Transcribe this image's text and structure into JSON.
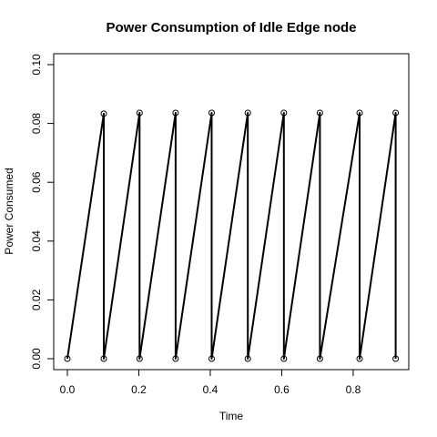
{
  "chart_data": {
    "type": "line",
    "title": "Power Consumption of Idle Edge node",
    "xlabel": "Time",
    "ylabel": "Power Consumed",
    "xlim": [
      0.0,
      0.92
    ],
    "ylim": [
      0.0,
      0.1
    ],
    "x_ticks": [
      "0.0",
      "0.2",
      "0.4",
      "0.6",
      "0.8"
    ],
    "y_ticks": [
      "0.00",
      "0.02",
      "0.04",
      "0.06",
      "0.08",
      "0.10"
    ],
    "grid": false,
    "series": [
      {
        "x": [
          0.0,
          0.102,
          0.102,
          0.202,
          0.202,
          0.303,
          0.303,
          0.404,
          0.404,
          0.505,
          0.505,
          0.606,
          0.606,
          0.707,
          0.707,
          0.818,
          0.818,
          0.919,
          0.919
        ],
        "y": [
          0.0,
          0.0833,
          0.0,
          0.0836,
          0.0,
          0.0836,
          0.0,
          0.0836,
          0.0,
          0.0836,
          0.0,
          0.0836,
          0.0,
          0.0836,
          0.0,
          0.0836,
          0.0,
          0.0836,
          0.0
        ]
      }
    ]
  }
}
